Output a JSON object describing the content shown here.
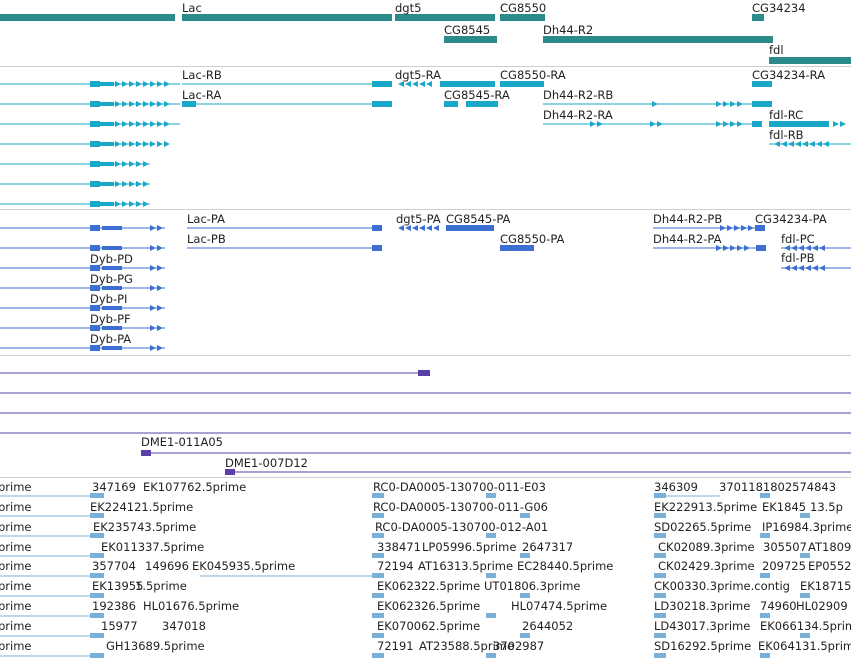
{
  "colors": {
    "gene": "#2b8a8a",
    "transcript": "#1aa8c8",
    "annotation": "#3c6fd1",
    "clone": "#5a3fa8",
    "est": "#7ab0d8"
  },
  "tracks": {
    "genes": [
      "Lac",
      "dgt5",
      "CG8550",
      "CG34234",
      "CG8545",
      "Dh44-R2",
      "fdl"
    ],
    "transcripts": [
      "Lac-RB",
      "dgt5-RA",
      "CG8550-RA",
      "CG34234-RA",
      "Lac-RA",
      "CG8545-RA",
      "Dh44-R2-RB",
      "Dh44-R2-RA",
      "fdl-RC",
      "fdl-RB"
    ],
    "annotations": [
      "Lac-PA",
      "dgt5-PA",
      "CG8545-PA",
      "Dh44-R2-PB",
      "CG34234-PA",
      "Lac-PB",
      "CG8550-PA",
      "Dh44-R2-PA",
      "fdl-PC",
      "fdl-PB",
      "Dyb-PD",
      "Dyb-PG",
      "Dyb-PI",
      "Dyb-PF",
      "Dyb-PA"
    ],
    "clones": [
      "DME1-011A05",
      "DME1-007D12"
    ],
    "ests": [
      "prime",
      "347169",
      "EK107762.5prime",
      "RC0-DA0005-130700-011-E03",
      "346309",
      "3701181802574843",
      "prime",
      "EK224121.5prime",
      "RC0-DA0005-130700-011-G06",
      "EK222913.5prime",
      "EK1845",
      "13.5p",
      "prime",
      "EK235743.5prime",
      "RC0-DA0005-130700-012-A01",
      "SD02265.5prime",
      "IP16984.3prime",
      "prime",
      "EK011337.5prime",
      "338471",
      "LP05996.5prime",
      "2647317",
      "CK02089.3prime",
      "305507",
      "AT1809",
      "prime",
      "357704",
      "149696",
      "EK045935.5prime",
      "72194",
      "AT16313.5prime",
      "EC28440.5prime",
      "CK02429.3prime",
      "209725",
      "EP0552",
      "prime",
      "EK13955",
      "1.5prime",
      "EK062322.5prime",
      "UT01806.3prime",
      "CK00330.3prime.contig",
      "EK18715",
      "prime",
      "192386",
      "HL01676.5prime",
      "EK062326.5prime",
      "HL07474.5prime",
      "LD30218.3prime",
      "74960",
      "HL02909",
      "prime",
      "15977",
      "347018",
      "EK070062.5prime",
      "2644052",
      "LD43017.3prime",
      "EK066134.5prime",
      "prime",
      "GH13689.5prime",
      "72191",
      "AT23588.5prime",
      "3702987",
      "SD16292.5prime",
      "EK064131.5prime"
    ]
  }
}
